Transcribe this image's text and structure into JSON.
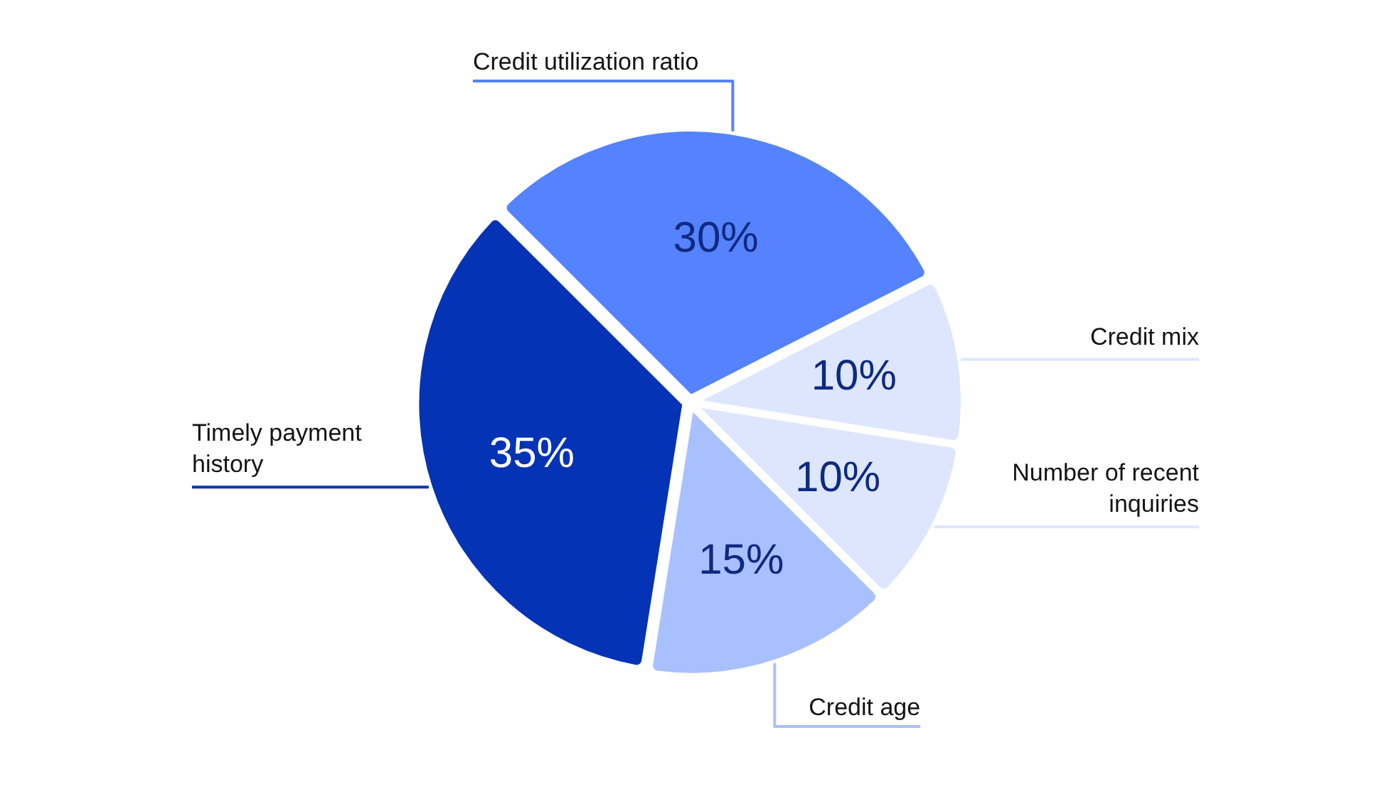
{
  "chart_data": {
    "type": "pie",
    "categories": [
      "Credit utilization ratio",
      "Credit mix",
      "Number of recent inquiries",
      "Credit age",
      "Timely payment history"
    ],
    "values": [
      30,
      10,
      10,
      15,
      35
    ],
    "value_labels": [
      "30%",
      "10%",
      "10%",
      "15%",
      "35%"
    ],
    "colors": [
      "#5582ff",
      "#dde6fd",
      "#dde6fd",
      "#a9c0ff",
      "#0433b5"
    ]
  }
}
